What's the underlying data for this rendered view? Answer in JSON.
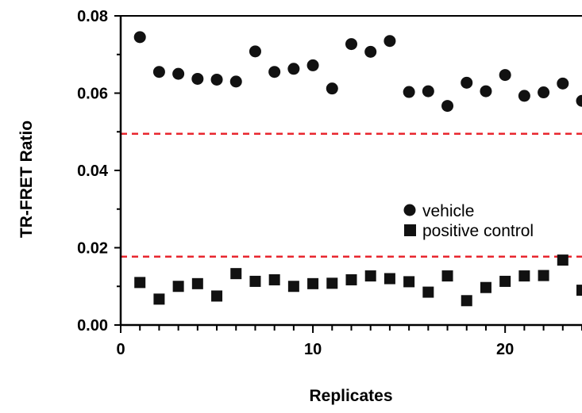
{
  "chart_data": {
    "type": "scatter",
    "xlabel": "Replicates",
    "ylabel": "TR-FRET Ratio",
    "xlim": [
      0,
      24
    ],
    "ylim": [
      0,
      0.08
    ],
    "x_ticks": [
      "0",
      "10",
      "20"
    ],
    "y_ticks": [
      "0.00",
      "0.02",
      "0.04",
      "0.06",
      "0.08"
    ],
    "grid": false,
    "legend_position": "center-right",
    "threshold_lines": [
      {
        "y": 0.0495,
        "color": "#e8262e",
        "style": "dashed"
      },
      {
        "y": 0.0177,
        "color": "#e8262e",
        "style": "dashed"
      }
    ],
    "series": [
      {
        "name": "vehicle",
        "marker": "circle",
        "color": "#111111",
        "x": [
          1,
          2,
          3,
          4,
          5,
          6,
          7,
          8,
          9,
          10,
          11,
          12,
          13,
          14,
          15,
          16,
          17,
          18,
          19,
          20,
          21,
          22,
          23,
          24
        ],
        "values": [
          0.0745,
          0.0655,
          0.065,
          0.0637,
          0.0635,
          0.063,
          0.0708,
          0.0655,
          0.0663,
          0.0672,
          0.0612,
          0.0727,
          0.0707,
          0.0735,
          0.0603,
          0.0605,
          0.0567,
          0.0627,
          0.0605,
          0.0647,
          0.0593,
          0.0602,
          0.0625,
          0.058
        ]
      },
      {
        "name": "positive control",
        "marker": "square",
        "color": "#111111",
        "x": [
          1,
          2,
          3,
          4,
          5,
          6,
          7,
          8,
          9,
          10,
          11,
          12,
          13,
          14,
          15,
          16,
          17,
          18,
          19,
          20,
          21,
          22,
          23,
          24
        ],
        "values": [
          0.011,
          0.0067,
          0.01,
          0.0107,
          0.0075,
          0.0133,
          0.0113,
          0.0117,
          0.01,
          0.0107,
          0.0108,
          0.0117,
          0.0127,
          0.012,
          0.0112,
          0.0085,
          0.0127,
          0.0063,
          0.0097,
          0.0113,
          0.0127,
          0.0128,
          0.0168,
          0.009
        ]
      }
    ]
  }
}
